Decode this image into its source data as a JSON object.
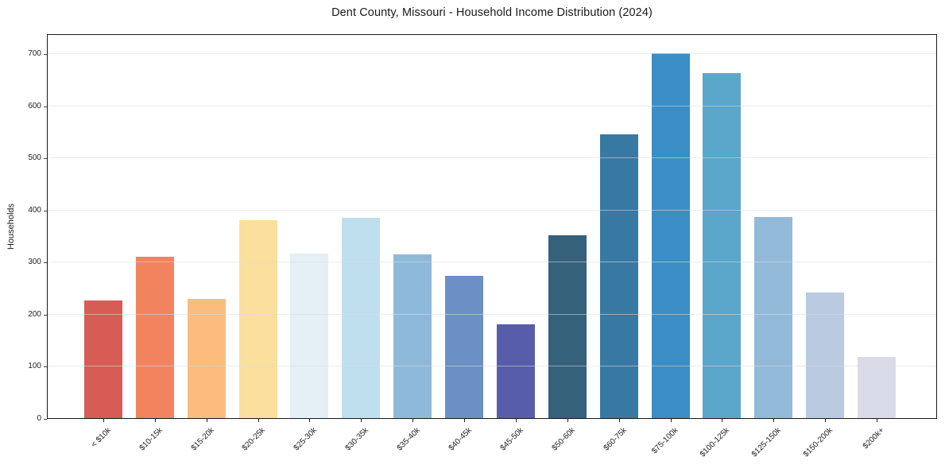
{
  "chart_data": {
    "type": "bar",
    "title": "Dent County, Missouri - Household Income Distribution (2024)",
    "xlabel": "",
    "ylabel": "Households",
    "categories": [
      "< $10k",
      "$10-15k",
      "$15-20k",
      "$20-25k",
      "$25-30k",
      "$30-35k",
      "$35-40k",
      "$40-45k",
      "$45-50k",
      "$50-60k",
      "$60-75k",
      "$75-100k",
      "$100-125k",
      "$125-150k",
      "$150-200k",
      "$200k+"
    ],
    "values": [
      225,
      310,
      229,
      380,
      316,
      384,
      314,
      273,
      180,
      351,
      544,
      700,
      662,
      386,
      241,
      117
    ],
    "bar_colors": [
      "#d65c55",
      "#f1845f",
      "#fbbc7d",
      "#fbdf9c",
      "#e4eff6",
      "#bfdeee",
      "#8fb9da",
      "#6b90c5",
      "#575dab",
      "#35617b",
      "#3879a3",
      "#3a8ec5",
      "#5ba6cb",
      "#93b9d9",
      "#b9cae1",
      "#d9dbe8"
    ],
    "yticks": [
      0,
      100,
      200,
      300,
      400,
      500,
      600,
      700
    ],
    "ylim": [
      0,
      738
    ],
    "grid": "horizontal",
    "x_tick_rotation": -45,
    "legend": "none",
    "colors": {
      "spine": "#1a1a1a",
      "grid": "#e9e9e9",
      "tick_text": "#222222",
      "background": "#ffffff"
    }
  }
}
